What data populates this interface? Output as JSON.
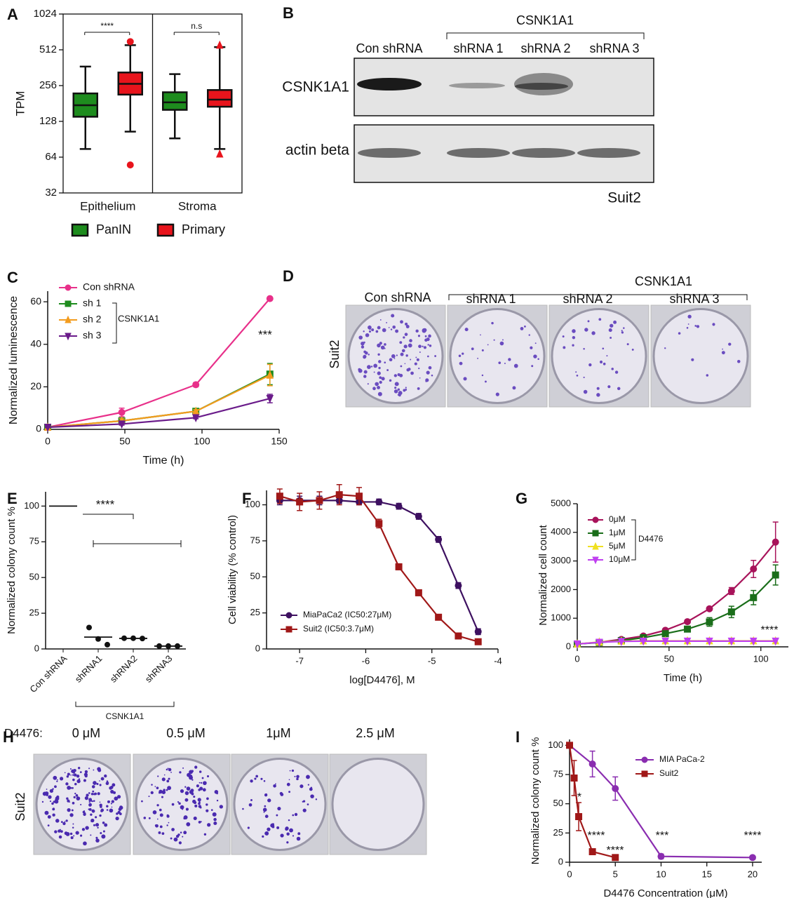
{
  "chart_data": [
    {
      "type": "box",
      "panel": "A",
      "ylabel": "TPM",
      "log_scale": true,
      "ylim": [
        32,
        1024
      ],
      "yticks": [
        32,
        64,
        128,
        256,
        512,
        1024
      ],
      "categories": [
        "Epithelium",
        "Stroma"
      ],
      "series": [
        {
          "name": "PanIN",
          "color": "#1e8c1e",
          "boxes": [
            {
              "min": 75,
              "q1": 140,
              "median": 175,
              "q3": 220,
              "max": 370,
              "outliers": []
            },
            {
              "min": 92,
              "q1": 160,
              "median": 185,
              "q3": 225,
              "max": 320,
              "outliers": []
            }
          ]
        },
        {
          "name": "Primary",
          "color": "#e8141c",
          "boxes": [
            {
              "min": 105,
              "q1": 215,
              "median": 265,
              "q3": 330,
              "max": 560,
              "outliers": [
                55,
                600
              ]
            },
            {
              "min": 75,
              "q1": 170,
              "median": 195,
              "q3": 235,
              "max": 540,
              "outliers": [
                68,
                560
              ]
            }
          ]
        }
      ],
      "annotations": [
        "****",
        "n.s"
      ]
    },
    {
      "type": "line",
      "panel": "C",
      "xlabel": "Time (h)",
      "ylabel": "Normalized luminescence",
      "x": [
        0,
        48,
        96,
        144
      ],
      "xlim": [
        0,
        150
      ],
      "xticks": [
        0,
        50,
        100,
        150
      ],
      "ylim": [
        0,
        65
      ],
      "yticks": [
        0,
        20,
        40,
        60
      ],
      "series": [
        {
          "name": "Con shRNA",
          "color": "#e8308a",
          "marker": "circle",
          "values": [
            1,
            8,
            21,
            61.5
          ],
          "errors": [
            0.5,
            2,
            1,
            0.5
          ]
        },
        {
          "name": "sh 1",
          "color": "#1e8c1e",
          "marker": "square",
          "values": [
            1,
            4,
            8.5,
            26
          ],
          "errors": [
            0.3,
            1,
            0.8,
            5
          ]
        },
        {
          "name": "sh 2",
          "color": "#f39c1e",
          "marker": "triangle",
          "values": [
            1,
            4,
            8.5,
            25.5
          ],
          "errors": [
            0.3,
            1,
            0.8,
            5
          ]
        },
        {
          "name": "sh 3",
          "color": "#6a1b8a",
          "marker": "down",
          "values": [
            1,
            2.5,
            5.5,
            14.5
          ],
          "errors": [
            0.2,
            0.5,
            0.5,
            2
          ]
        }
      ],
      "legend_group_label": "CSNK1A1",
      "annotations": [
        "***"
      ]
    },
    {
      "type": "dot",
      "panel": "E",
      "ylabel": "Normalized colony count %",
      "ylim": [
        0,
        110
      ],
      "yticks": [
        0,
        25,
        50,
        75,
        100
      ],
      "categories": [
        "Con shRNA",
        "shRNA1",
        "shRNA2",
        "shRNA3"
      ],
      "points": [
        [
          100,
          100,
          100
        ],
        [
          15,
          7,
          3
        ],
        [
          7.5,
          7.5,
          7.3
        ],
        [
          2,
          2,
          2
        ]
      ],
      "means": [
        100,
        8.3,
        7.4,
        2
      ],
      "group_label": "CSNK1A1",
      "annotations": [
        "****"
      ]
    },
    {
      "type": "line",
      "panel": "F",
      "xlabel": "log[D4476], M",
      "ylabel": "Cell viability (% control)",
      "x": [
        -7.3,
        -7,
        -6.7,
        -6.4,
        -6.1,
        -5.8,
        -5.5,
        -5.2,
        -4.9,
        -4.6,
        -4.3
      ],
      "xlim": [
        -7.5,
        -4
      ],
      "xticks": [
        -7,
        -6,
        -5,
        -4
      ],
      "ylim": [
        0,
        110
      ],
      "yticks": [
        0,
        25,
        50,
        75,
        100
      ],
      "series": [
        {
          "name": "MiaPaCa2 (IC50:27μM)",
          "color": "#3d1060",
          "marker": "circle",
          "values": [
            103,
            103,
            103,
            103,
            102,
            102,
            99,
            92,
            76,
            44,
            12
          ],
          "errors": [
            3,
            3,
            3,
            2,
            2,
            2,
            2,
            2,
            2,
            2,
            2
          ]
        },
        {
          "name": "Suit2 (IC50:3.7μM)",
          "color": "#a01818",
          "marker": "square",
          "values": [
            106,
            102,
            103,
            107,
            106,
            87,
            57,
            39,
            22,
            9,
            5
          ],
          "errors": [
            5,
            6,
            6,
            7,
            6,
            3,
            2,
            2,
            1,
            1,
            1
          ]
        }
      ]
    },
    {
      "type": "line",
      "panel": "G",
      "xlabel": "Time (h)",
      "ylabel": "Normalized cell count",
      "x": [
        0,
        12,
        24,
        36,
        48,
        60,
        72,
        84,
        96,
        108
      ],
      "xlim": [
        0,
        115
      ],
      "xticks": [
        0,
        50,
        100
      ],
      "ylim": [
        0,
        5000
      ],
      "yticks": [
        0,
        1000,
        2000,
        3000,
        4000,
        5000
      ],
      "series": [
        {
          "name": "0μM",
          "color": "#a8135a",
          "marker": "circle",
          "values": [
            100,
            160,
            260,
            380,
            580,
            880,
            1330,
            1950,
            2720,
            3660
          ],
          "errors": [
            20,
            20,
            30,
            30,
            40,
            50,
            60,
            120,
            300,
            700
          ]
        },
        {
          "name": "1μM",
          "color": "#1a6e1a",
          "marker": "square",
          "values": [
            100,
            150,
            220,
            320,
            460,
            620,
            870,
            1220,
            1720,
            2510
          ],
          "errors": [
            20,
            20,
            30,
            30,
            40,
            50,
            150,
            200,
            250,
            350
          ]
        },
        {
          "name": "5μM",
          "color": "#f0e020",
          "marker": "triangle",
          "values": [
            100,
            170,
            200,
            210,
            210,
            210,
            210,
            210,
            210,
            210
          ]
        },
        {
          "name": "10μM",
          "color": "#c040f0",
          "marker": "down",
          "values": [
            100,
            160,
            190,
            200,
            200,
            200,
            200,
            200,
            200,
            200
          ]
        }
      ],
      "legend_group_label": "D4476",
      "annotations": [
        "****"
      ]
    },
    {
      "type": "line",
      "panel": "I",
      "xlabel": "D4476 Concentration (μM)",
      "ylabel": "Normalized colony count %",
      "xlim": [
        0,
        21
      ],
      "xticks": [
        0,
        5,
        10,
        15,
        20
      ],
      "ylim": [
        0,
        105
      ],
      "yticks": [
        0,
        25,
        50,
        75,
        100
      ],
      "series": [
        {
          "name": "MIA PaCa-2",
          "color": "#8a2db0",
          "marker": "circle",
          "x": [
            0,
            2.5,
            5,
            10,
            20
          ],
          "values": [
            100,
            84,
            63,
            5,
            4
          ],
          "errors": [
            0,
            11,
            10,
            2,
            1
          ]
        },
        {
          "name": "Suit2",
          "color": "#a01818",
          "marker": "square",
          "x": [
            0,
            0.5,
            1,
            2.5,
            5
          ],
          "values": [
            100,
            72,
            39,
            9,
            4
          ],
          "errors": [
            0,
            15,
            12,
            1,
            1
          ]
        }
      ],
      "annotations": [
        "*",
        "****",
        "****",
        "***",
        "****"
      ]
    }
  ],
  "blot": {
    "panel": "B",
    "group_label": "CSNK1A1",
    "lanes": [
      "Con shRNA",
      "shRNA 1",
      "shRNA 2",
      "shRNA 3"
    ],
    "rows": [
      "CSNK1A1",
      "actin beta"
    ],
    "cell_line": "Suit2"
  },
  "colony_assay": {
    "panel": "D",
    "group_label": "CSNK1A1",
    "lanes": [
      "Con shRNA",
      "shRNA 1",
      "shRNA 2",
      "shRNA 3"
    ],
    "cell_line": "Suit2"
  },
  "drug_colony_assay": {
    "panel": "H",
    "drug_label": "D4476:",
    "doses": [
      "0 μM",
      "0.5 μM",
      "1μM",
      "2.5 μM"
    ],
    "cell_line": "Suit2"
  }
}
